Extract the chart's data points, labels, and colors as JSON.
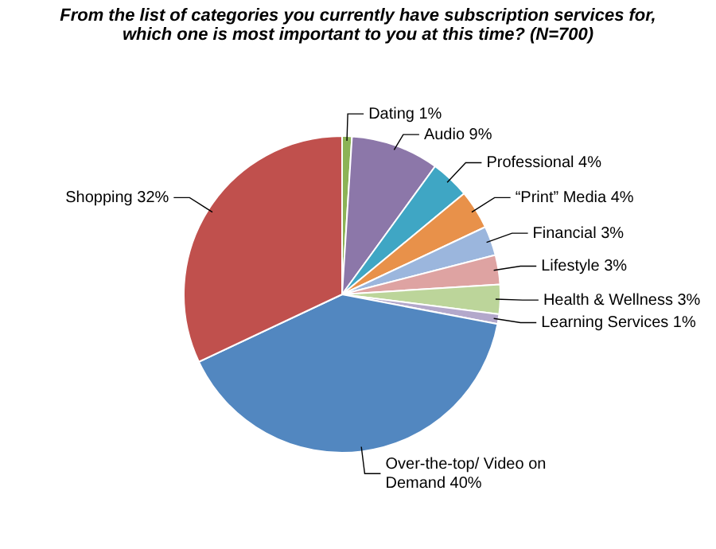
{
  "chart_data": {
    "type": "pie",
    "title": "From the list of categories you currently have subscription services for, which one is most important to you at this time? (N=700)",
    "categories": [
      "Dating",
      "Audio",
      "Professional",
      "“Print” Media",
      "Financial",
      "Lifestyle",
      "Health & Wellness",
      "Learning Services",
      "Over-the-top/ Video on Demand",
      "Shopping"
    ],
    "values": [
      1,
      9,
      4,
      4,
      3,
      3,
      3,
      1,
      40,
      32
    ],
    "value_labels": [
      "1%",
      "9%",
      "4%",
      "4%",
      "3%",
      "3%",
      "3%",
      "1%",
      "40%",
      "32%"
    ],
    "colors": [
      "#8cb356",
      "#8c77a9",
      "#3fa6c4",
      "#e8914a",
      "#9bb6dd",
      "#dea3a2",
      "#bcd59a",
      "#b3a8cb",
      "#5287c0",
      "#c0504d"
    ],
    "legend": false
  }
}
